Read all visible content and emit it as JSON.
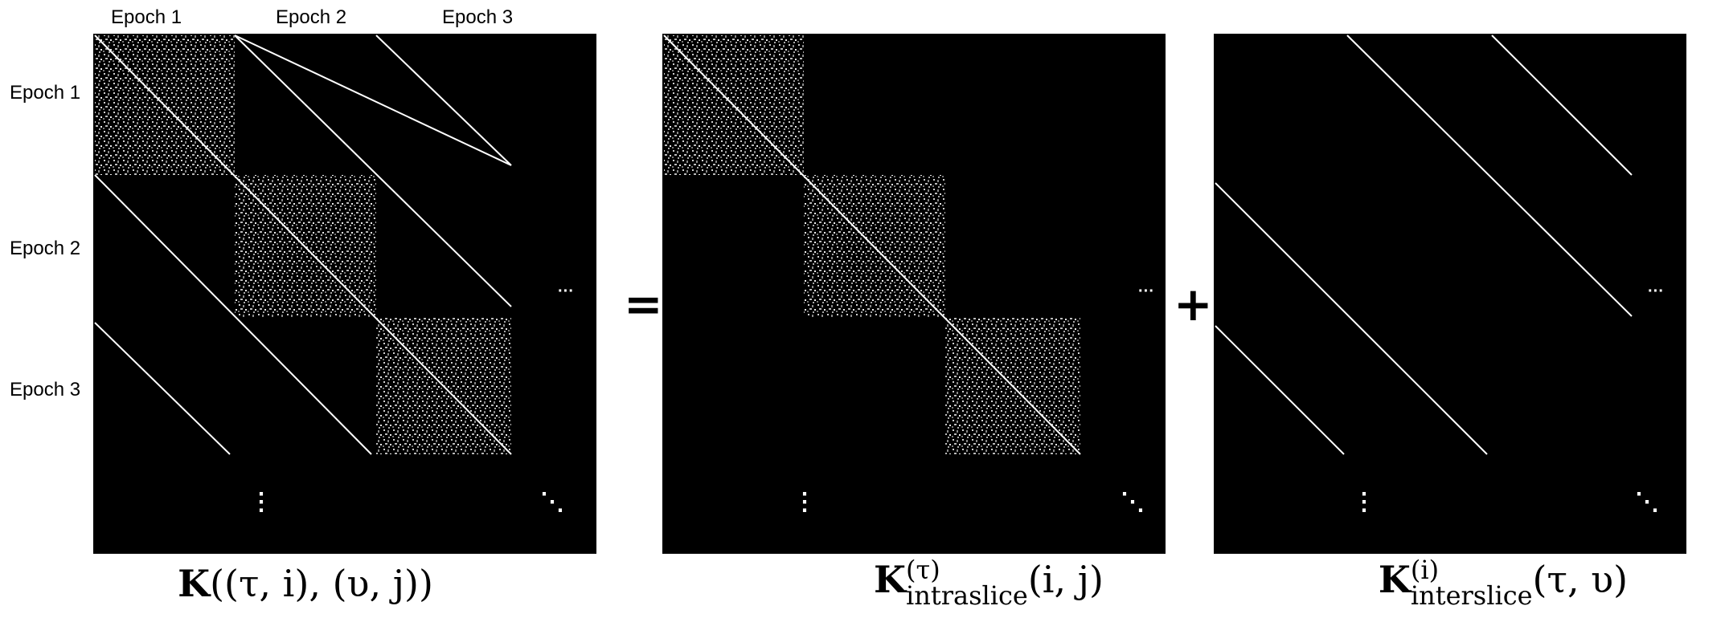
{
  "colors": {
    "background": "#000000",
    "line": "#ffffff",
    "block": "#c8c8c8"
  },
  "column_labels": [
    "Epoch 1",
    "Epoch 2",
    "Epoch 3"
  ],
  "row_labels": [
    "Epoch 1",
    "Epoch 2",
    "Epoch 3"
  ],
  "operators": {
    "equals": "=",
    "plus": "+"
  },
  "ellipsis": {
    "horizontal": "···",
    "vertical": "⋮",
    "diagonal": "⋱"
  },
  "equations": {
    "full": {
      "symbol": "K",
      "args": "((τ, i), (υ, j))"
    },
    "intra": {
      "symbol": "K",
      "sup": "(τ)",
      "sub": "intraslice",
      "args": "(i, j)"
    },
    "inter": {
      "symbol": "K",
      "sup": "(i)",
      "sub": "interslice",
      "args": "(τ, υ)"
    }
  }
}
